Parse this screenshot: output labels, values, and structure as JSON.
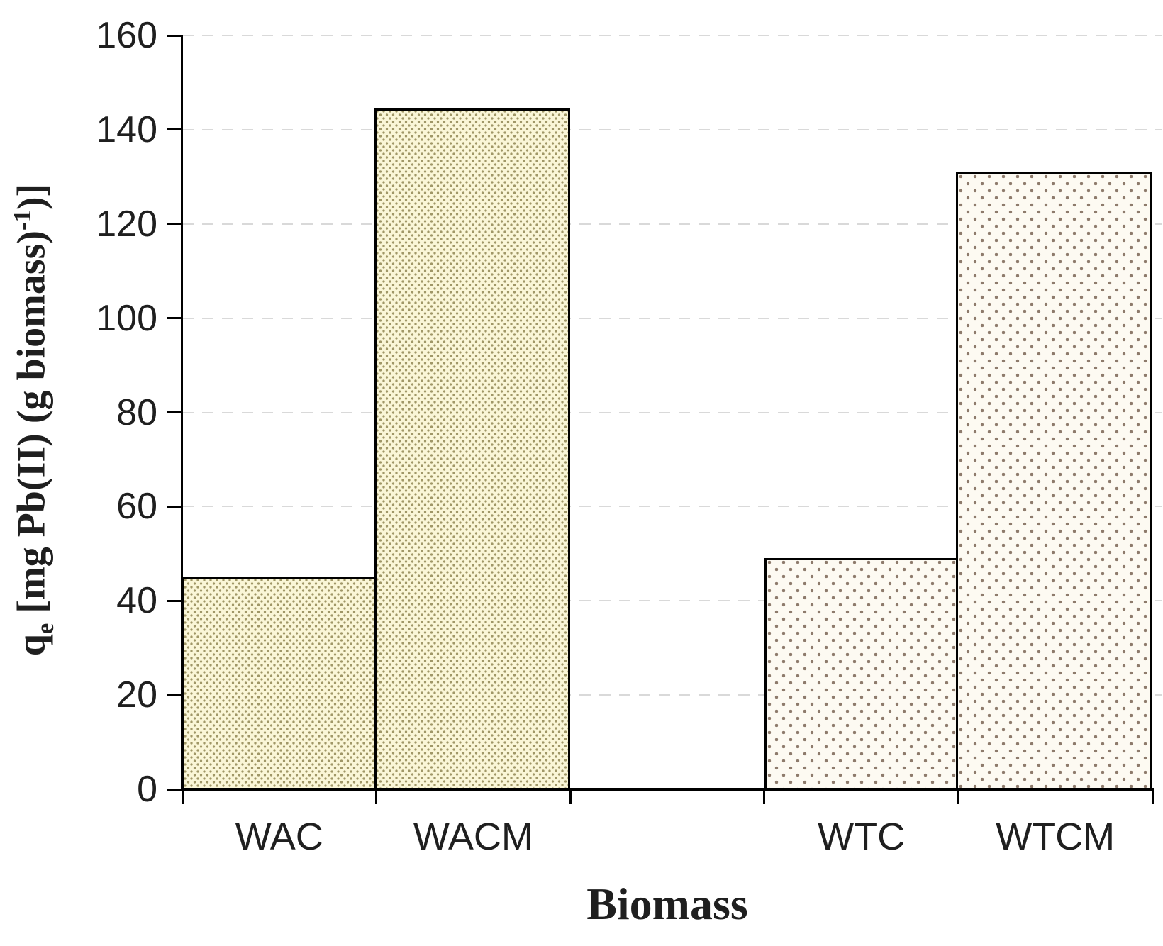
{
  "chart_data": {
    "type": "bar",
    "title": "",
    "xlabel": "Biomass",
    "ylabel": "qe [mg Pb(II) (g biomass)-1)]",
    "ylabel_parts": {
      "var": "q",
      "var_sub": "e",
      "unit_open": " [mg Pb(II) (g biomass)",
      "exp": "-1",
      "unit_close": ")]"
    },
    "categories": [
      "WAC",
      "WACM",
      "WTC",
      "WTCM"
    ],
    "values": [
      45,
      144.5,
      49,
      131
    ],
    "slot_indices": [
      0,
      1,
      3,
      4
    ],
    "num_slots": 5,
    "ylim": [
      0,
      160
    ],
    "yticks": [
      0,
      20,
      40,
      60,
      80,
      100,
      120,
      140,
      160
    ],
    "grid": "dashed-horizontal",
    "legend": "none",
    "style_index": [
      0,
      0,
      1,
      1
    ],
    "bar_styles": [
      {
        "name": "dense-olive-dots",
        "fill": "#FAF6D7",
        "dot_color": "#A09767"
      },
      {
        "name": "sparse-brown-dots",
        "fill": "#FDFAF2",
        "dot_color": "#8E7B6C"
      }
    ],
    "colors": {
      "axis": "#000000",
      "bar_border": "#000000",
      "gridline": "#D9D9D9",
      "text": "#1F1F1F"
    }
  }
}
